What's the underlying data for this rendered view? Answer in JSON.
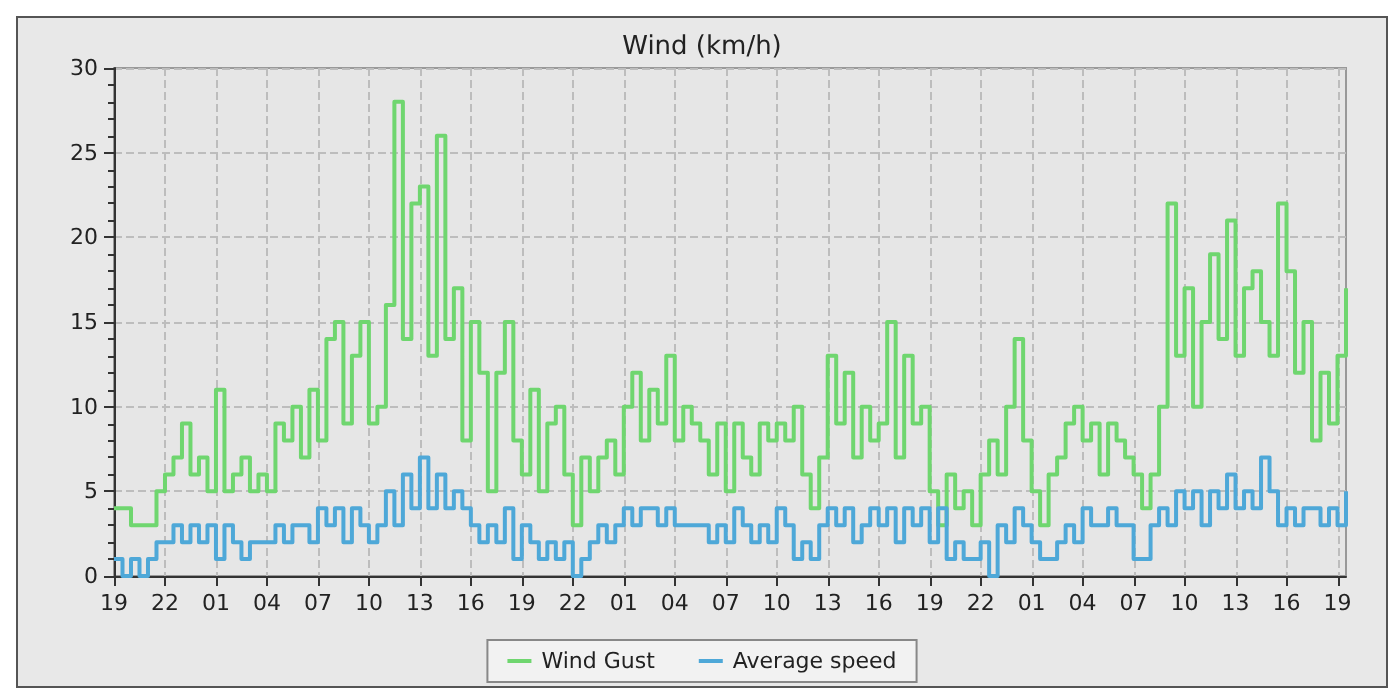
{
  "chart_data": {
    "type": "step",
    "title": "Wind (km/h)",
    "categories": [
      "19",
      null,
      null,
      null,
      null,
      null,
      "22",
      null,
      null,
      null,
      null,
      null,
      "01",
      null,
      null,
      null,
      null,
      null,
      "04",
      null,
      null,
      null,
      null,
      null,
      "07",
      null,
      null,
      null,
      null,
      null,
      "10",
      null,
      null,
      null,
      null,
      null,
      "13",
      null,
      null,
      null,
      null,
      null,
      "16",
      null,
      null,
      null,
      null,
      null,
      "19",
      null,
      null,
      null,
      null,
      null,
      "22",
      null,
      null,
      null,
      null,
      null,
      "01",
      null,
      null,
      null,
      null,
      null,
      "04",
      null,
      null,
      null,
      null,
      null,
      "07",
      null,
      null,
      null,
      null,
      null,
      "10",
      null,
      null,
      null,
      null,
      null,
      "13",
      null,
      null,
      null,
      null,
      null,
      "16",
      null,
      null,
      null,
      null,
      null,
      "19",
      null,
      null,
      null,
      null,
      null,
      "22",
      null,
      null,
      null,
      null,
      null,
      "01",
      null,
      null,
      null,
      null,
      null,
      "04",
      null,
      null,
      null,
      null,
      null,
      "07",
      null,
      null,
      null,
      null,
      null,
      "10",
      null,
      null,
      null,
      null,
      null,
      "13",
      null,
      null,
      null,
      null,
      null,
      "16",
      null,
      null,
      null,
      null,
      null,
      "19",
      null
    ],
    "series": [
      {
        "name": "Wind Gust",
        "color": "#6fd66f",
        "values": [
          4,
          4,
          3,
          3,
          3,
          5,
          6,
          7,
          9,
          6,
          7,
          5,
          11,
          5,
          6,
          7,
          5,
          6,
          5,
          9,
          8,
          10,
          7,
          11,
          8,
          14,
          15,
          9,
          13,
          15,
          9,
          10,
          16,
          28,
          14,
          22,
          23,
          13,
          26,
          14,
          17,
          8,
          15,
          12,
          5,
          12,
          15,
          8,
          6,
          11,
          5,
          9,
          10,
          6,
          3,
          7,
          5,
          7,
          8,
          6,
          10,
          12,
          8,
          11,
          9,
          13,
          8,
          10,
          9,
          8,
          6,
          9,
          5,
          9,
          7,
          6,
          9,
          8,
          9,
          8,
          10,
          6,
          4,
          7,
          13,
          9,
          12,
          7,
          10,
          8,
          9,
          15,
          7,
          13,
          9,
          10,
          5,
          3,
          6,
          4,
          5,
          3,
          6,
          8,
          6,
          10,
          14,
          8,
          5,
          3,
          6,
          7,
          9,
          10,
          8,
          9,
          6,
          9,
          8,
          7,
          6,
          4,
          6,
          10,
          22,
          13,
          17,
          10,
          15,
          19,
          14,
          21,
          13,
          17,
          18,
          15,
          13,
          22,
          18,
          12,
          15,
          8,
          12,
          9,
          13,
          17
        ]
      },
      {
        "name": "Average speed",
        "color": "#4ea8d8",
        "values": [
          1,
          0,
          1,
          0,
          1,
          2,
          2,
          3,
          2,
          3,
          2,
          3,
          1,
          3,
          2,
          1,
          2,
          2,
          2,
          3,
          2,
          3,
          3,
          2,
          4,
          3,
          4,
          2,
          4,
          3,
          2,
          3,
          5,
          3,
          6,
          4,
          7,
          4,
          6,
          4,
          5,
          4,
          3,
          2,
          3,
          2,
          4,
          1,
          3,
          2,
          1,
          2,
          1,
          2,
          0,
          1,
          2,
          3,
          2,
          3,
          4,
          3,
          4,
          4,
          3,
          4,
          3,
          3,
          3,
          3,
          2,
          3,
          2,
          4,
          3,
          2,
          3,
          2,
          4,
          3,
          1,
          2,
          1,
          3,
          4,
          3,
          4,
          2,
          3,
          4,
          3,
          4,
          2,
          4,
          3,
          4,
          2,
          4,
          1,
          2,
          1,
          1,
          2,
          0,
          3,
          2,
          4,
          3,
          2,
          1,
          1,
          2,
          3,
          2,
          4,
          3,
          3,
          4,
          3,
          3,
          1,
          1,
          3,
          4,
          3,
          5,
          4,
          5,
          3,
          5,
          4,
          6,
          4,
          5,
          4,
          7,
          5,
          3,
          4,
          3,
          4,
          4,
          3,
          4,
          3,
          5
        ]
      }
    ],
    "ylim": [
      0,
      30
    ],
    "yticks": [
      0,
      5,
      10,
      15,
      20,
      25,
      30
    ],
    "grid": true,
    "legend": "bottom",
    "marker": "none",
    "line_style": "solid"
  }
}
